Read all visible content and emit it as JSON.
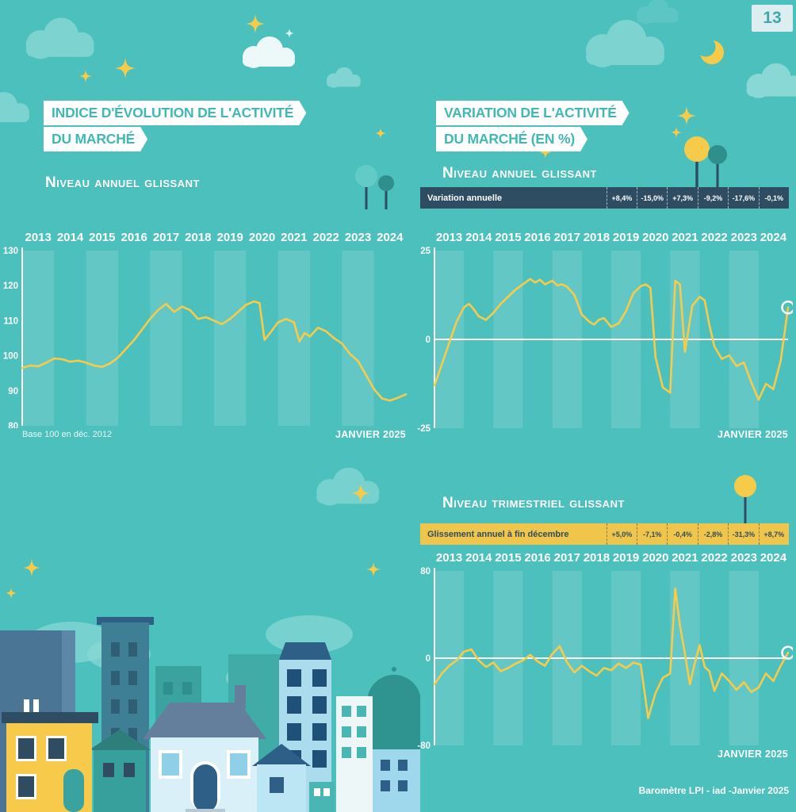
{
  "page": {
    "number": "13",
    "credit": "Baromètre LPI - iad -Janvier 2025"
  },
  "colors": {
    "background": "#4cc0bd",
    "accent_yellow": "#f7cb4a",
    "navy": "#2e4d63",
    "ribbon_text": "#3fb9b6",
    "band": "rgba(255,255,255,0.13)"
  },
  "left_section": {
    "title_line1": "INDICE D'ÉVOLUTION DE L'ACTIVITÉ",
    "title_line2": "DU MARCHÉ",
    "subtitle": "Niveau annuel glissant",
    "note": "Base 100 en déc. 2012",
    "date_label": "JANVIER 2025"
  },
  "right_section": {
    "title_line1": "VARIATION DE L'ACTIVITÉ",
    "title_line2": "DU MARCHÉ (EN %)",
    "subtitle": "Niveau annuel glissant",
    "stat_bar": {
      "label": "Variation annuelle",
      "values": [
        "+8,4%",
        "-15,0%",
        "+7,3%",
        "-9,2%",
        "-17,6%",
        "-0,1%"
      ]
    },
    "date_label": "JANVIER 2025"
  },
  "bottom_section": {
    "subtitle": "Niveau trimestriel glissant",
    "stat_bar": {
      "label": "Glissement annuel à fin décembre",
      "values": [
        "+5,0%",
        "-7,1%",
        "-0,4%",
        "-2,8%",
        "-31,3%",
        "+8,7%"
      ]
    },
    "date_label": "JANVIER 2025"
  },
  "decor": {
    "icons": [
      "cloud-icon",
      "sparkle-icon",
      "moon-icon",
      "tree-icon",
      "cityscape-illustration"
    ]
  },
  "chart_data": [
    {
      "type": "line",
      "title": "Indice d'évolution de l'activité du marché — niveau annuel glissant",
      "xlim": [
        2013,
        2025
      ],
      "x_tick_labels": [
        "2013",
        "2014",
        "2015",
        "2016",
        "2017",
        "2018",
        "2019",
        "2020",
        "2021",
        "2022",
        "2023",
        "2024"
      ],
      "ylim": [
        80,
        130
      ],
      "yticks": [
        130,
        120,
        110,
        100,
        90,
        80
      ],
      "zero_line": false,
      "end_marker": false,
      "line_color": "#f7cb4a",
      "note": "Base 100 en déc. 2012",
      "points": [
        [
          2013.0,
          96.5
        ],
        [
          2013.25,
          97.2
        ],
        [
          2013.5,
          97.0
        ],
        [
          2013.75,
          98.0
        ],
        [
          2014.0,
          99.2
        ],
        [
          2014.25,
          99.0
        ],
        [
          2014.5,
          98.3
        ],
        [
          2014.75,
          98.6
        ],
        [
          2015.0,
          98.0
        ],
        [
          2015.25,
          97.2
        ],
        [
          2015.5,
          96.8
        ],
        [
          2015.75,
          97.8
        ],
        [
          2016.0,
          99.5
        ],
        [
          2016.25,
          102.0
        ],
        [
          2016.5,
          104.5
        ],
        [
          2016.75,
          107.5
        ],
        [
          2017.0,
          110.5
        ],
        [
          2017.25,
          113.0
        ],
        [
          2017.5,
          114.8
        ],
        [
          2017.75,
          112.5
        ],
        [
          2018.0,
          114.0
        ],
        [
          2018.25,
          113.0
        ],
        [
          2018.5,
          110.5
        ],
        [
          2018.75,
          111.0
        ],
        [
          2019.0,
          110.0
        ],
        [
          2019.25,
          109.0
        ],
        [
          2019.5,
          110.5
        ],
        [
          2019.75,
          112.5
        ],
        [
          2020.0,
          114.5
        ],
        [
          2020.25,
          115.5
        ],
        [
          2020.42,
          115.0
        ],
        [
          2020.58,
          104.5
        ],
        [
          2020.75,
          106.5
        ],
        [
          2021.0,
          109.5
        ],
        [
          2021.25,
          110.5
        ],
        [
          2021.5,
          109.5
        ],
        [
          2021.67,
          104.0
        ],
        [
          2021.83,
          106.5
        ],
        [
          2022.0,
          105.5
        ],
        [
          2022.25,
          108.0
        ],
        [
          2022.5,
          107.0
        ],
        [
          2022.75,
          105.0
        ],
        [
          2023.0,
          103.5
        ],
        [
          2023.25,
          100.5
        ],
        [
          2023.5,
          98.5
        ],
        [
          2023.75,
          94.5
        ],
        [
          2024.0,
          90.5
        ],
        [
          2024.25,
          87.8
        ],
        [
          2024.5,
          87.2
        ],
        [
          2024.75,
          88.0
        ],
        [
          2025.0,
          89.0
        ]
      ]
    },
    {
      "type": "line",
      "title": "Variation de l'activité du marché (en %) — niveau annuel glissant",
      "xlim": [
        2013,
        2025
      ],
      "x_tick_labels": [
        "2013",
        "2014",
        "2015",
        "2016",
        "2017",
        "2018",
        "2019",
        "2020",
        "2021",
        "2022",
        "2023",
        "2024"
      ],
      "ylim": [
        -25,
        25
      ],
      "yticks": [
        25,
        0,
        -25
      ],
      "zero_line": true,
      "end_marker": true,
      "line_color": "#f7cb4a",
      "points": [
        [
          2013.0,
          -13
        ],
        [
          2013.25,
          -7
        ],
        [
          2013.5,
          -1
        ],
        [
          2013.75,
          5
        ],
        [
          2014.0,
          9
        ],
        [
          2014.17,
          10
        ],
        [
          2014.33,
          8.5
        ],
        [
          2014.5,
          6.5
        ],
        [
          2014.75,
          5.5
        ],
        [
          2015.0,
          7.5
        ],
        [
          2015.25,
          10
        ],
        [
          2015.5,
          12
        ],
        [
          2015.75,
          14
        ],
        [
          2016.0,
          15.5
        ],
        [
          2016.25,
          17
        ],
        [
          2016.42,
          16
        ],
        [
          2016.58,
          16.8
        ],
        [
          2016.75,
          15.5
        ],
        [
          2017.0,
          16.5
        ],
        [
          2017.17,
          15.2
        ],
        [
          2017.33,
          15.5
        ],
        [
          2017.5,
          14.8
        ],
        [
          2017.75,
          12.5
        ],
        [
          2018.0,
          7
        ],
        [
          2018.25,
          5
        ],
        [
          2018.42,
          4.2
        ],
        [
          2018.58,
          5.5
        ],
        [
          2018.75,
          6
        ],
        [
          2019.0,
          3.5
        ],
        [
          2019.25,
          4.5
        ],
        [
          2019.5,
          8
        ],
        [
          2019.75,
          13
        ],
        [
          2020.0,
          15
        ],
        [
          2020.17,
          15.5
        ],
        [
          2020.33,
          14.5
        ],
        [
          2020.5,
          -5
        ],
        [
          2020.75,
          -13.5
        ],
        [
          2021.0,
          -15
        ],
        [
          2021.17,
          16.5
        ],
        [
          2021.33,
          15.5
        ],
        [
          2021.5,
          -3.5
        ],
        [
          2021.75,
          9.5
        ],
        [
          2022.0,
          12
        ],
        [
          2022.17,
          11
        ],
        [
          2022.33,
          4
        ],
        [
          2022.5,
          -2
        ],
        [
          2022.75,
          -5.5
        ],
        [
          2023.0,
          -4.5
        ],
        [
          2023.25,
          -7.5
        ],
        [
          2023.5,
          -6.5
        ],
        [
          2023.75,
          -12
        ],
        [
          2024.0,
          -17
        ],
        [
          2024.25,
          -12.5
        ],
        [
          2024.5,
          -14
        ],
        [
          2024.75,
          -6
        ],
        [
          2025.0,
          9
        ]
      ]
    },
    {
      "type": "line",
      "title": "Variation de l'activité du marché (en %) — niveau trimestriel glissant",
      "xlim": [
        2013,
        2025
      ],
      "x_tick_labels": [
        "2013",
        "2014",
        "2015",
        "2016",
        "2017",
        "2018",
        "2019",
        "2020",
        "2021",
        "2022",
        "2023",
        "2024"
      ],
      "ylim": [
        -80,
        80
      ],
      "yticks": [
        80,
        0,
        -80
      ],
      "zero_line": true,
      "end_marker": true,
      "line_color": "#f7cb4a",
      "points": [
        [
          2013.0,
          -24
        ],
        [
          2013.25,
          -14
        ],
        [
          2013.5,
          -7
        ],
        [
          2013.75,
          -2
        ],
        [
          2014.0,
          6
        ],
        [
          2014.25,
          8
        ],
        [
          2014.5,
          -2
        ],
        [
          2014.75,
          -8
        ],
        [
          2015.0,
          -4
        ],
        [
          2015.25,
          -12
        ],
        [
          2015.5,
          -9
        ],
        [
          2015.75,
          -5
        ],
        [
          2016.0,
          -2
        ],
        [
          2016.25,
          3
        ],
        [
          2016.5,
          -3
        ],
        [
          2016.75,
          -7
        ],
        [
          2017.0,
          4
        ],
        [
          2017.25,
          11
        ],
        [
          2017.5,
          -4
        ],
        [
          2017.75,
          -13
        ],
        [
          2018.0,
          -7
        ],
        [
          2018.25,
          -12
        ],
        [
          2018.5,
          -16
        ],
        [
          2018.75,
          -9
        ],
        [
          2019.0,
          -11
        ],
        [
          2019.25,
          -5
        ],
        [
          2019.5,
          -9
        ],
        [
          2019.75,
          -4
        ],
        [
          2020.0,
          -6
        ],
        [
          2020.25,
          -55
        ],
        [
          2020.5,
          -32
        ],
        [
          2020.75,
          -18
        ],
        [
          2021.0,
          -14
        ],
        [
          2021.17,
          64
        ],
        [
          2021.33,
          30
        ],
        [
          2021.5,
          4
        ],
        [
          2021.67,
          -24
        ],
        [
          2021.83,
          -5
        ],
        [
          2022.0,
          12
        ],
        [
          2022.17,
          -8
        ],
        [
          2022.33,
          -12
        ],
        [
          2022.5,
          -30
        ],
        [
          2022.75,
          -14
        ],
        [
          2023.0,
          -21
        ],
        [
          2023.25,
          -29
        ],
        [
          2023.5,
          -22
        ],
        [
          2023.75,
          -31
        ],
        [
          2024.0,
          -27
        ],
        [
          2024.25,
          -14
        ],
        [
          2024.5,
          -21
        ],
        [
          2024.75,
          -7
        ],
        [
          2025.0,
          5
        ]
      ]
    }
  ]
}
